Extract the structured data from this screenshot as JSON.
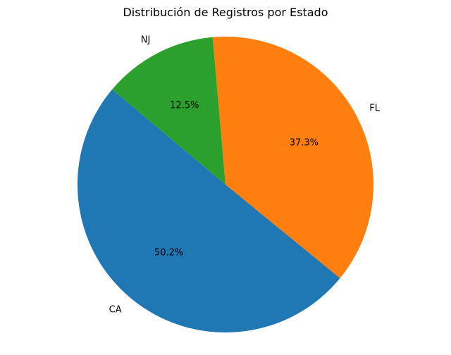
{
  "chart_data": {
    "type": "pie",
    "title": "Distribución de Registros por Estado",
    "labels": [
      "CA",
      "FL",
      "NJ"
    ],
    "values": [
      50.2,
      37.3,
      12.5
    ],
    "percent_labels": [
      "50.2%",
      "37.3%",
      "12.5%"
    ],
    "colors": [
      "#1f77b4",
      "#ff7f0e",
      "#2ca02c"
    ],
    "start_angle_deg": 140,
    "direction": "counterclockwise",
    "legend": "none"
  }
}
